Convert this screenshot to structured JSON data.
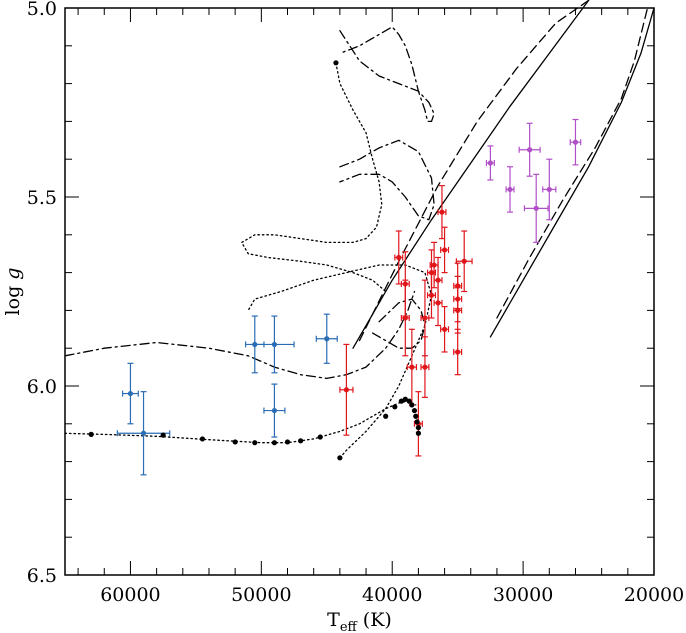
{
  "chart_data": {
    "type": "scatter",
    "title": "",
    "xlabel": "T",
    "xlabel_sub": "eff",
    "xlabel_unit": "(K)",
    "ylabel": "log ",
    "ylabel_italic": "g",
    "xlim": [
      65000,
      20000
    ],
    "ylim": [
      5.0,
      6.5
    ],
    "y_inverted": true,
    "x_major_ticks": [
      60000,
      50000,
      40000,
      30000,
      20000
    ],
    "x_tick_labels": [
      "60000",
      "50000",
      "40000",
      "30000",
      "20000"
    ],
    "y_major_ticks": [
      5.0,
      5.5,
      6.0,
      6.5
    ],
    "y_tick_labels": [
      "5.0",
      "5.5",
      "6.0",
      "6.5"
    ],
    "series": [
      {
        "name": "blue stars",
        "color": "#2a6db5",
        "marker": "dot",
        "points": [
          {
            "x": 60000,
            "y": 6.02,
            "xerr": 600,
            "yerr": 0.08
          },
          {
            "x": 59000,
            "y": 6.125,
            "xerr": 2000,
            "yerr": 0.11
          },
          {
            "x": 50500,
            "y": 5.89,
            "xerr": 700,
            "yerr": 0.075
          },
          {
            "x": 49000,
            "y": 5.89,
            "xerr": 1500,
            "yerr": 0.075
          },
          {
            "x": 49000,
            "y": 6.065,
            "xerr": 800,
            "yerr": 0.07
          },
          {
            "x": 45000,
            "y": 5.875,
            "xerr": 800,
            "yerr": 0.065
          }
        ]
      },
      {
        "name": "red stars",
        "color": "#e0161b",
        "marker": "dot",
        "points": [
          {
            "x": 43500,
            "y": 6.01,
            "xerr": 500,
            "yerr": 0.12
          },
          {
            "x": 39500,
            "y": 5.66,
            "xerr": 300,
            "yerr": 0.07
          },
          {
            "x": 39000,
            "y": 5.73,
            "xerr": 300,
            "yerr": 0.085
          },
          {
            "x": 39000,
            "y": 5.82,
            "xerr": 300,
            "yerr": 0.1
          },
          {
            "x": 38500,
            "y": 5.95,
            "xerr": 350,
            "yerr": 0.1
          },
          {
            "x": 38000,
            "y": 6.1,
            "xerr": 300,
            "yerr": 0.085
          },
          {
            "x": 37500,
            "y": 5.82,
            "xerr": 300,
            "yerr": 0.1
          },
          {
            "x": 37500,
            "y": 5.95,
            "xerr": 300,
            "yerr": 0.08
          },
          {
            "x": 37000,
            "y": 5.7,
            "xerr": 300,
            "yerr": 0.06
          },
          {
            "x": 37000,
            "y": 5.76,
            "xerr": 300,
            "yerr": 0.06
          },
          {
            "x": 36800,
            "y": 5.68,
            "xerr": 300,
            "yerr": 0.06
          },
          {
            "x": 36500,
            "y": 5.72,
            "xerr": 300,
            "yerr": 0.06
          },
          {
            "x": 36500,
            "y": 5.78,
            "xerr": 300,
            "yerr": 0.06
          },
          {
            "x": 36200,
            "y": 5.54,
            "xerr": 300,
            "yerr": 0.07
          },
          {
            "x": 36000,
            "y": 5.64,
            "xerr": 300,
            "yerr": 0.06
          },
          {
            "x": 36000,
            "y": 5.85,
            "xerr": 300,
            "yerr": 0.06
          },
          {
            "x": 35000,
            "y": 5.735,
            "xerr": 300,
            "yerr": 0.06
          },
          {
            "x": 35000,
            "y": 5.77,
            "xerr": 300,
            "yerr": 0.06
          },
          {
            "x": 35000,
            "y": 5.8,
            "xerr": 300,
            "yerr": 0.06
          },
          {
            "x": 35000,
            "y": 5.91,
            "xerr": 300,
            "yerr": 0.06
          },
          {
            "x": 34500,
            "y": 5.67,
            "xerr": 600,
            "yerr": 0.08
          }
        ]
      },
      {
        "name": "purple stars",
        "color": "#b04fc8",
        "marker": "dot",
        "points": [
          {
            "x": 32500,
            "y": 5.41,
            "xerr": 300,
            "yerr": 0.045
          },
          {
            "x": 31000,
            "y": 5.48,
            "xerr": 300,
            "yerr": 0.06
          },
          {
            "x": 29500,
            "y": 5.375,
            "xerr": 800,
            "yerr": 0.07
          },
          {
            "x": 29000,
            "y": 5.53,
            "xerr": 900,
            "yerr": 0.09
          },
          {
            "x": 28000,
            "y": 5.48,
            "xerr": 500,
            "yerr": 0.08
          },
          {
            "x": 26000,
            "y": 5.355,
            "xerr": 400,
            "yerr": 0.06
          }
        ]
      },
      {
        "name": "black dotted-track points",
        "color": "#000000",
        "marker": "dot",
        "points": [
          {
            "x": 44300,
            "y": 5.145
          },
          {
            "x": 63000,
            "y": 6.128
          },
          {
            "x": 57500,
            "y": 6.13
          },
          {
            "x": 54500,
            "y": 6.14
          },
          {
            "x": 52000,
            "y": 6.148
          },
          {
            "x": 50500,
            "y": 6.15
          },
          {
            "x": 49000,
            "y": 6.15
          },
          {
            "x": 48000,
            "y": 6.148
          },
          {
            "x": 47000,
            "y": 6.145
          },
          {
            "x": 45500,
            "y": 6.135
          },
          {
            "x": 44000,
            "y": 6.19
          },
          {
            "x": 40500,
            "y": 6.08
          },
          {
            "x": 39800,
            "y": 6.055
          },
          {
            "x": 39300,
            "y": 6.04
          },
          {
            "x": 39000,
            "y": 6.035
          },
          {
            "x": 38700,
            "y": 6.04
          },
          {
            "x": 38500,
            "y": 6.05
          },
          {
            "x": 38300,
            "y": 6.065
          },
          {
            "x": 38200,
            "y": 6.08
          },
          {
            "x": 38100,
            "y": 6.095
          },
          {
            "x": 38000,
            "y": 6.11
          },
          {
            "x": 38000,
            "y": 6.125
          }
        ]
      }
    ],
    "lines": [
      {
        "name": "solid line left",
        "style": "solid",
        "x": [
          43000,
          40000,
          37000,
          34000,
          31000,
          28000,
          25000
        ],
        "y": [
          5.9,
          5.72,
          5.56,
          5.41,
          5.26,
          5.12,
          4.98
        ]
      },
      {
        "name": "dashed line left",
        "style": "dashed",
        "x": [
          42500,
          39500,
          36500,
          33500,
          30500,
          27500,
          25000
        ],
        "y": [
          5.88,
          5.67,
          5.47,
          5.3,
          5.16,
          5.04,
          4.98
        ]
      },
      {
        "name": "solid line right",
        "style": "solid",
        "x": [
          32500,
          30000,
          27500,
          25000,
          22500,
          21000,
          20000
        ],
        "y": [
          5.87,
          5.72,
          5.57,
          5.42,
          5.25,
          5.12,
          5.0
        ]
      },
      {
        "name": "dashed line right",
        "style": "dashed",
        "x": [
          32000,
          29500,
          27000,
          24500,
          22500,
          21500,
          20500
        ],
        "y": [
          5.82,
          5.66,
          5.51,
          5.37,
          5.24,
          5.14,
          5.0
        ]
      },
      {
        "name": "dotted track A",
        "style": "dotted",
        "x": [
          65000,
          62000,
          58000,
          54000,
          50000,
          48000,
          46000,
          44000,
          42500,
          41500,
          40500,
          39500,
          38800,
          38200
        ],
        "y": [
          6.125,
          6.128,
          6.133,
          6.142,
          6.15,
          6.15,
          6.14,
          6.12,
          6.1,
          6.08,
          6.06,
          6.045,
          6.04,
          6.05
        ]
      },
      {
        "name": "dotted track B",
        "style": "dotted",
        "x": [
          44300,
          44000,
          43000,
          42000,
          41500,
          41000,
          40800,
          41200,
          42000,
          43000,
          45000,
          47000,
          49000,
          50500,
          51500,
          51000,
          49500,
          47000,
          45000,
          43000,
          41500,
          40500
        ],
        "y": [
          5.145,
          5.2,
          5.27,
          5.33,
          5.4,
          5.46,
          5.52,
          5.58,
          5.61,
          5.62,
          5.62,
          5.61,
          5.6,
          5.6,
          5.62,
          5.65,
          5.66,
          5.67,
          5.68,
          5.7,
          5.72,
          5.75
        ]
      },
      {
        "name": "dotted track C",
        "style": "dotted",
        "x": [
          44000,
          43500,
          42000,
          40500,
          39500,
          38500,
          37500,
          37000,
          37500,
          39000,
          41000,
          43500,
          46000,
          48500,
          50500,
          51000
        ],
        "y": [
          6.19,
          6.17,
          6.12,
          6.06,
          6.0,
          5.92,
          5.84,
          5.76,
          5.7,
          5.68,
          5.68,
          5.7,
          5.72,
          5.75,
          5.77,
          5.8
        ]
      },
      {
        "name": "dash-dot track A",
        "style": "dashdot",
        "x": [
          65000,
          62000,
          58000,
          54000,
          51000,
          49000,
          47000,
          45000,
          43500,
          42000,
          40500,
          39500,
          38800,
          38300
        ],
        "y": [
          5.92,
          5.9,
          5.885,
          5.9,
          5.92,
          5.95,
          5.97,
          5.98,
          5.97,
          5.95,
          5.9,
          5.85,
          5.8,
          5.75
        ]
      },
      {
        "name": "dash-dot loop top",
        "style": "dashdot",
        "x": [
          44000,
          42500,
          41000,
          39500,
          38000,
          37200,
          36800,
          37000,
          37300,
          37500,
          38000,
          38500,
          39000,
          39500,
          40000,
          41000,
          42500,
          44000
        ],
        "y": [
          5.06,
          5.14,
          5.18,
          5.2,
          5.22,
          5.25,
          5.28,
          5.3,
          5.3,
          5.27,
          5.22,
          5.15,
          5.1,
          5.07,
          5.05,
          5.07,
          5.1,
          5.12
        ]
      },
      {
        "name": "dash-dot loop middle",
        "style": "dashdot",
        "x": [
          44000,
          42500,
          41000,
          39500,
          38000,
          37000,
          36800,
          37200,
          38000,
          39000,
          40000,
          41000,
          42500,
          44000
        ],
        "y": [
          5.42,
          5.4,
          5.37,
          5.35,
          5.38,
          5.45,
          5.52,
          5.56,
          5.55,
          5.5,
          5.46,
          5.44,
          5.44,
          5.46
        ]
      },
      {
        "name": "dash-dot loop lower",
        "style": "dashdot",
        "x": [
          41000,
          39500,
          38500,
          37800,
          37500,
          37800,
          38500,
          39500,
          40500,
          41500
        ],
        "y": [
          5.83,
          5.78,
          5.77,
          5.8,
          5.84,
          5.88,
          5.9,
          5.9,
          5.88,
          5.86
        ]
      }
    ]
  }
}
